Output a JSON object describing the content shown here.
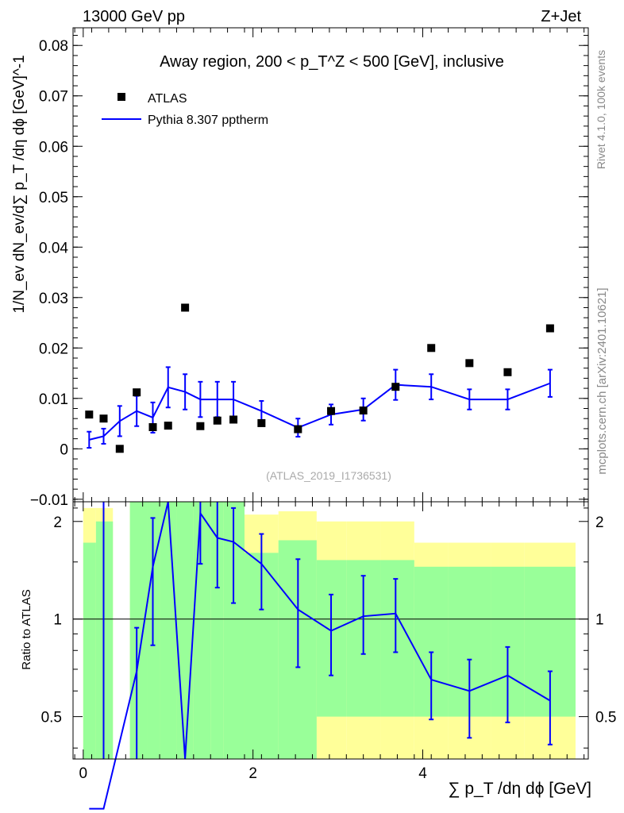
{
  "header": {
    "left": "13000 GeV pp",
    "right": "Z+Jet"
  },
  "chart_data": {
    "type": "scatter",
    "title": "Away region, 200 < p_T^Z < 500 [GeV], inclusive",
    "xlabel": "∑ p_T /dη dϕ [GeV]",
    "ylabel": "1/N_ev dN_ev/d∑ p_T /dη dϕ  [GeV]^-1",
    "ratio_ylabel": "Ratio to ATLAS",
    "watermark": "(ATLAS_2019_I1736531)",
    "side_label_top": "Rivet 4.1.0,  100k events",
    "side_label_bottom": "mcplots.cern.ch [arXiv:2401.10621]",
    "xlim": [
      -0.12,
      5.95
    ],
    "ylim": [
      -0.0105,
      0.0835
    ],
    "ratio_ylim": [
      0.37,
      2.3
    ],
    "x_ticks": [
      "0",
      "2",
      "4"
    ],
    "y_ticks": [
      "−0.01",
      "0",
      "0.01",
      "0.02",
      "0.03",
      "0.04",
      "0.05",
      "0.06",
      "0.07",
      "0.08"
    ],
    "ratio_ticks": [
      "0.5",
      "1",
      "2"
    ],
    "legend": [
      {
        "label": "ATLAS",
        "marker": "square",
        "color": "#000000"
      },
      {
        "label": "Pythia 8.307 pptherm",
        "marker": "line",
        "color": "#0000ff"
      }
    ],
    "bins": [
      {
        "lo": 0.0,
        "hi": 0.15
      },
      {
        "lo": 0.15,
        "hi": 0.35
      },
      {
        "lo": 0.35,
        "hi": 0.55
      },
      {
        "lo": 0.55,
        "hi": 0.75
      },
      {
        "lo": 0.75,
        "hi": 0.9
      },
      {
        "lo": 0.9,
        "hi": 1.1
      },
      {
        "lo": 1.1,
        "hi": 1.3
      },
      {
        "lo": 1.3,
        "hi": 1.5
      },
      {
        "lo": 1.5,
        "hi": 1.65
      },
      {
        "lo": 1.65,
        "hi": 1.9
      },
      {
        "lo": 1.9,
        "hi": 2.3
      },
      {
        "lo": 2.3,
        "hi": 2.75
      },
      {
        "lo": 2.75,
        "hi": 3.1
      },
      {
        "lo": 3.1,
        "hi": 3.5
      },
      {
        "lo": 3.5,
        "hi": 3.9
      },
      {
        "lo": 3.9,
        "hi": 4.3
      },
      {
        "lo": 4.3,
        "hi": 4.8
      },
      {
        "lo": 4.8,
        "hi": 5.2
      },
      {
        "lo": 5.2,
        "hi": 5.8
      }
    ],
    "series": [
      {
        "name": "ATLAS",
        "x": [
          0.07,
          0.24,
          0.43,
          0.63,
          0.82,
          1.0,
          1.2,
          1.38,
          1.58,
          1.77,
          2.1,
          2.53,
          2.92,
          3.3,
          3.68,
          4.1,
          4.55,
          5.0,
          5.5
        ],
        "y": [
          0.0068,
          0.006,
          0.0,
          0.0112,
          0.0043,
          0.0046,
          0.028,
          0.0045,
          0.0056,
          0.0058,
          0.0051,
          0.0039,
          0.0075,
          0.0076,
          0.0123,
          0.02,
          0.017,
          0.0152,
          0.0239
        ]
      },
      {
        "name": "Pythia 8.307 pptherm",
        "x": [
          0.07,
          0.24,
          0.43,
          0.63,
          0.82,
          1.0,
          1.2,
          1.38,
          1.58,
          1.77,
          2.1,
          2.53,
          2.92,
          3.3,
          3.68,
          4.1,
          4.55,
          5.0,
          5.5
        ],
        "y": [
          0.0018,
          0.0025,
          0.0055,
          0.0075,
          0.0062,
          0.0122,
          0.0113,
          0.0098,
          0.0098,
          0.0098,
          0.0075,
          0.0042,
          0.0068,
          0.0078,
          0.0127,
          0.0123,
          0.0098,
          0.0098,
          0.013
        ],
        "err": [
          0.0016,
          0.0015,
          0.003,
          0.003,
          0.003,
          0.004,
          0.0035,
          0.0035,
          0.0035,
          0.0035,
          0.002,
          0.0018,
          0.002,
          0.0022,
          0.003,
          0.0025,
          0.002,
          0.002,
          0.0027
        ]
      }
    ],
    "ratio": {
      "x": [
        0.07,
        0.24,
        0.43,
        0.63,
        0.82,
        1.0,
        1.2,
        1.38,
        1.58,
        1.77,
        2.1,
        2.53,
        2.92,
        3.3,
        3.68,
        4.1,
        4.55,
        5.0,
        5.5
      ],
      "values": [
        0.26,
        0.26,
        null,
        0.69,
        1.45,
        2.3,
        0.37,
        2.12,
        1.78,
        1.73,
        1.48,
        1.07,
        0.92,
        1.02,
        1.04,
        0.65,
        0.6,
        0.67,
        0.56
      ],
      "err_lo": [
        0.0,
        0.0,
        null,
        0.0,
        0.83,
        0.0,
        0.0,
        1.48,
        1.25,
        1.12,
        1.07,
        0.71,
        0.67,
        0.78,
        0.79,
        0.49,
        0.43,
        0.48,
        0.41
      ],
      "err_hi": [
        0.0,
        2.3,
        null,
        0.94,
        2.05,
        0.0,
        0.0,
        2.3,
        2.3,
        2.2,
        1.83,
        1.53,
        1.19,
        1.36,
        1.33,
        0.79,
        0.75,
        0.82,
        0.69
      ],
      "band_green": [
        [
          0.37,
          1.72
        ],
        [
          0.37,
          2.0
        ],
        null,
        [
          0.37,
          2.3
        ],
        [
          0.37,
          2.3
        ],
        [
          0.37,
          2.3
        ],
        [
          0.37,
          2.3
        ],
        [
          0.37,
          2.3
        ],
        [
          0.37,
          2.3
        ],
        [
          0.37,
          2.3
        ],
        [
          0.37,
          1.6
        ],
        [
          0.37,
          1.75
        ],
        [
          0.5,
          1.52
        ],
        [
          0.5,
          1.52
        ],
        [
          0.5,
          1.52
        ],
        [
          0.5,
          1.45
        ],
        [
          0.5,
          1.45
        ],
        [
          0.5,
          1.45
        ],
        [
          0.5,
          1.45
        ]
      ],
      "band_yellow": [
        [
          0.37,
          2.2
        ],
        [
          0.37,
          2.2
        ],
        null,
        [
          0.37,
          2.3
        ],
        [
          0.37,
          2.3
        ],
        [
          0.37,
          2.3
        ],
        [
          0.37,
          2.3
        ],
        [
          0.37,
          2.3
        ],
        [
          0.37,
          2.3
        ],
        [
          0.37,
          2.3
        ],
        [
          0.37,
          2.1
        ],
        [
          0.37,
          2.15
        ],
        [
          0.37,
          2.0
        ],
        [
          0.37,
          2.0
        ],
        [
          0.37,
          2.0
        ],
        [
          0.37,
          1.72
        ],
        [
          0.37,
          1.72
        ],
        [
          0.37,
          1.72
        ],
        [
          0.37,
          1.72
        ]
      ]
    }
  }
}
